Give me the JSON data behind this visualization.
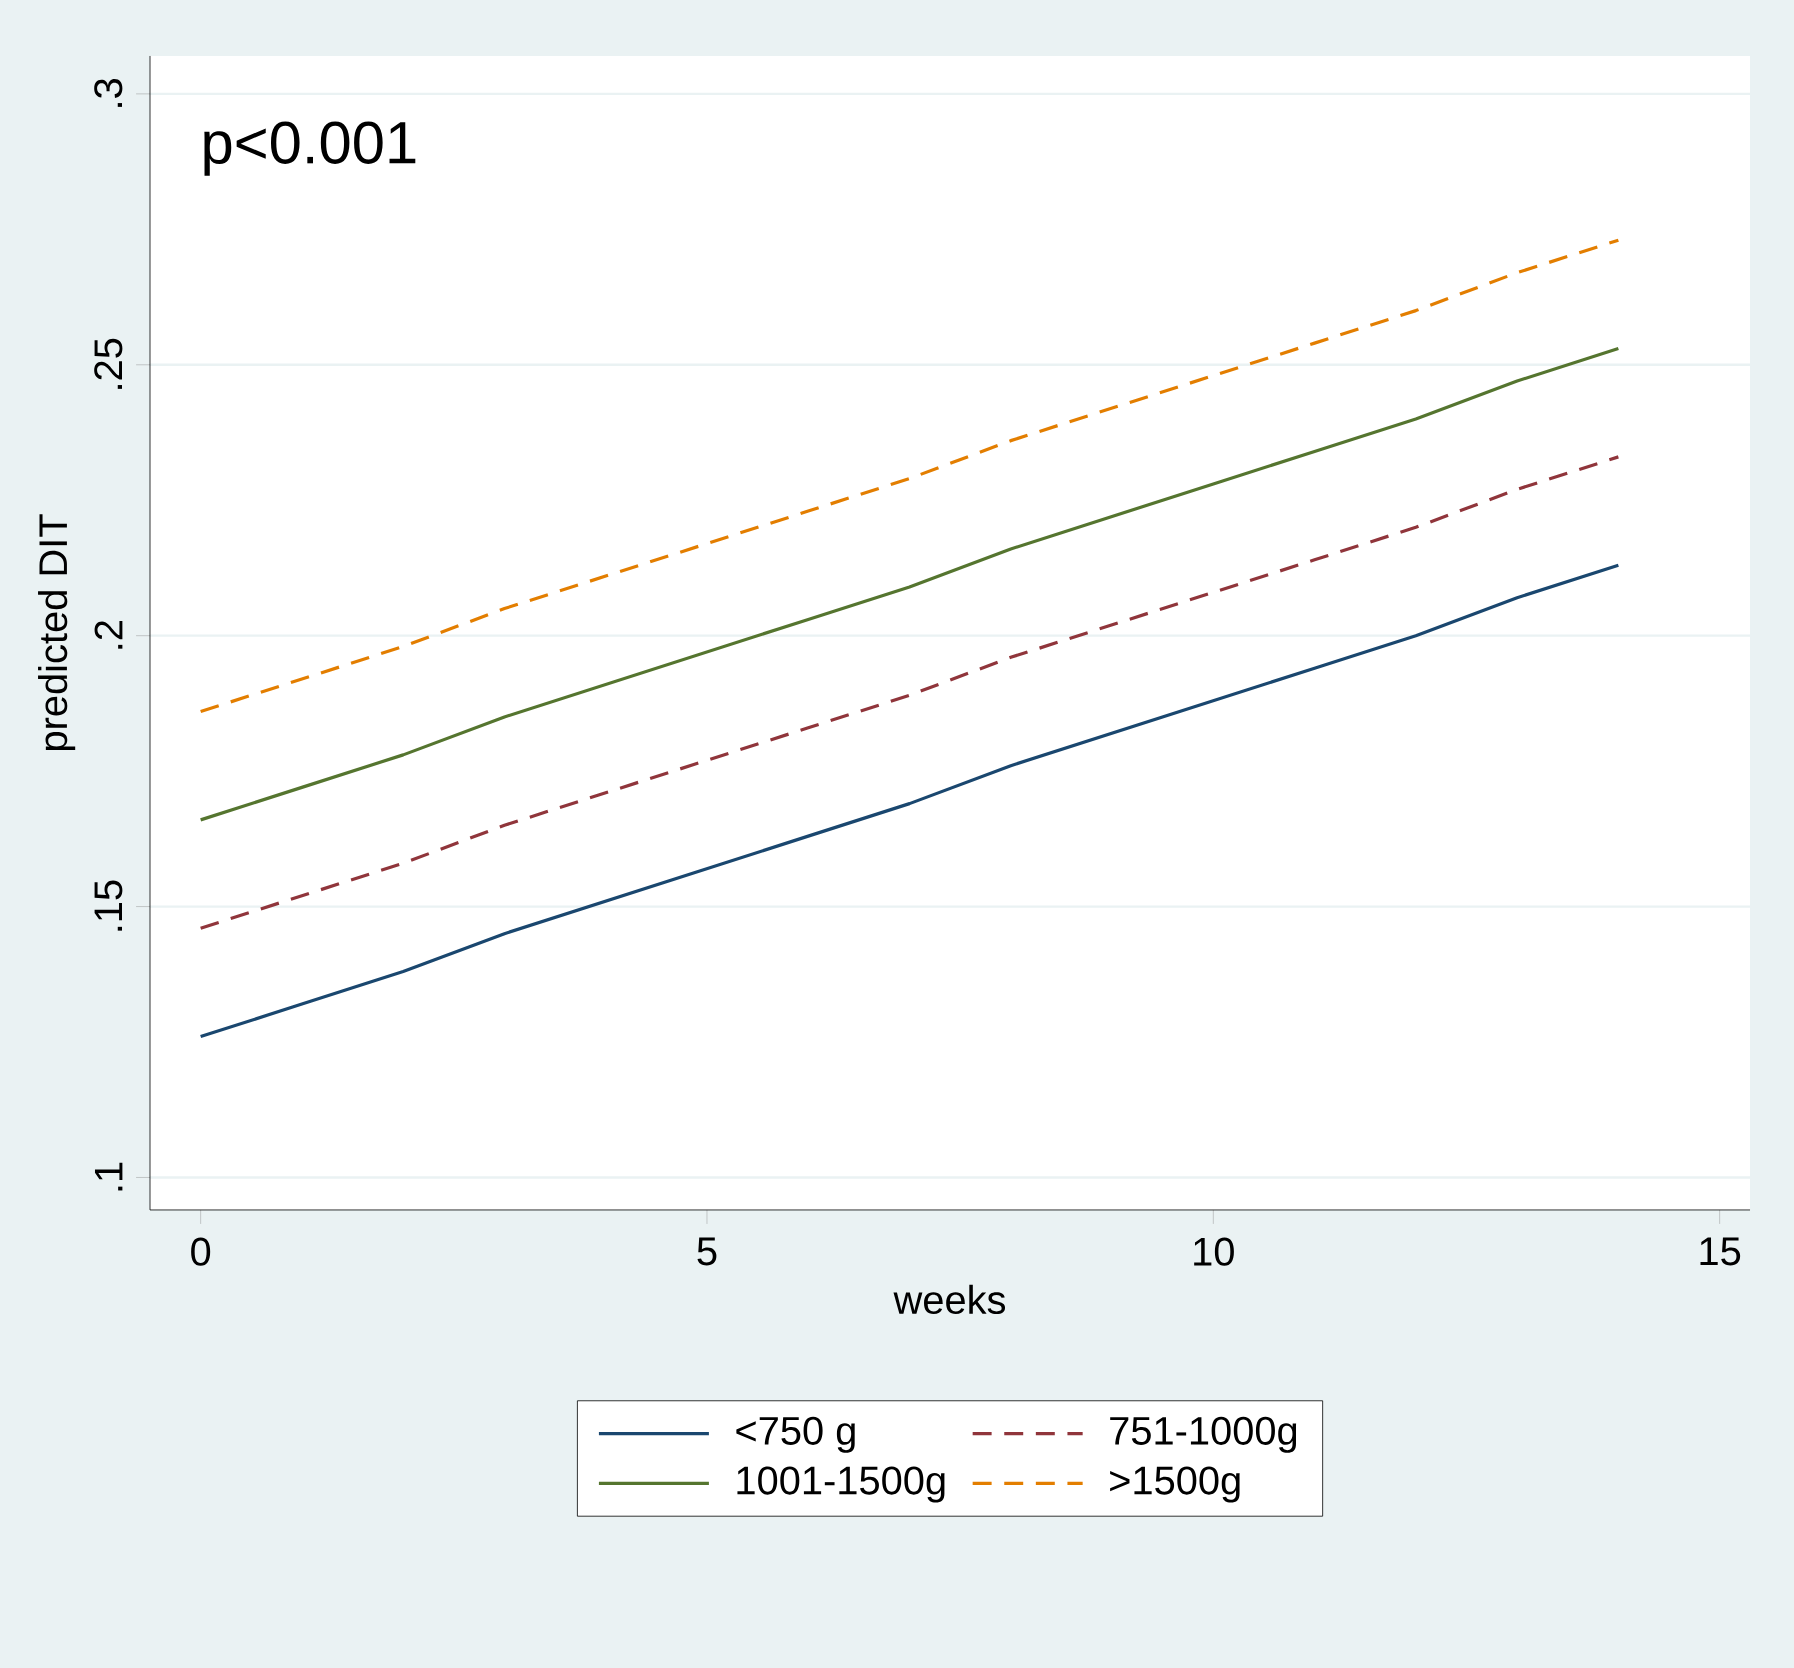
{
  "chart_data": {
    "type": "line",
    "xlabel": "weeks",
    "ylabel": "predicted DIT",
    "annotations": [
      "p<0.001"
    ],
    "x": [
      0,
      1,
      2,
      3,
      4,
      5,
      6,
      7,
      8,
      9,
      10,
      11,
      12,
      13,
      14
    ],
    "series": [
      {
        "name": "<750 g",
        "color": "#1a476f",
        "line_style": "solid",
        "values": [
          0.126,
          0.132,
          0.138,
          0.145,
          0.151,
          0.157,
          0.163,
          0.169,
          0.176,
          0.182,
          0.188,
          0.194,
          0.2,
          0.207,
          0.213
        ]
      },
      {
        "name": "751-1000g",
        "color": "#90353b",
        "line_style": "dashed",
        "values": [
          0.146,
          0.152,
          0.158,
          0.165,
          0.171,
          0.177,
          0.183,
          0.189,
          0.196,
          0.202,
          0.208,
          0.214,
          0.22,
          0.227,
          0.233
        ]
      },
      {
        "name": "1001-1500g",
        "color": "#55752f",
        "line_style": "solid",
        "values": [
          0.166,
          0.172,
          0.178,
          0.185,
          0.191,
          0.197,
          0.203,
          0.209,
          0.216,
          0.222,
          0.228,
          0.234,
          0.24,
          0.247,
          0.253
        ]
      },
      {
        "name": ">1500g",
        "color": "#e37e00",
        "line_style": "dashed",
        "values": [
          0.186,
          0.192,
          0.198,
          0.205,
          0.211,
          0.217,
          0.223,
          0.229,
          0.236,
          0.242,
          0.248,
          0.254,
          0.26,
          0.267,
          0.273
        ]
      }
    ],
    "xlim": [
      -0.5,
      15.3
    ],
    "ylim": [
      0.094,
      0.307
    ],
    "xticks": [
      0,
      5,
      10,
      15
    ],
    "yticks": [
      {
        "value": 0.1,
        "label": ".1"
      },
      {
        "value": 0.15,
        "label": ".15"
      },
      {
        "value": 0.2,
        "label": ".2"
      },
      {
        "value": 0.25,
        "label": ".25"
      },
      {
        "value": 0.3,
        "label": ".3"
      }
    ],
    "grid": "y",
    "legend": "bottom",
    "marker": "none"
  }
}
